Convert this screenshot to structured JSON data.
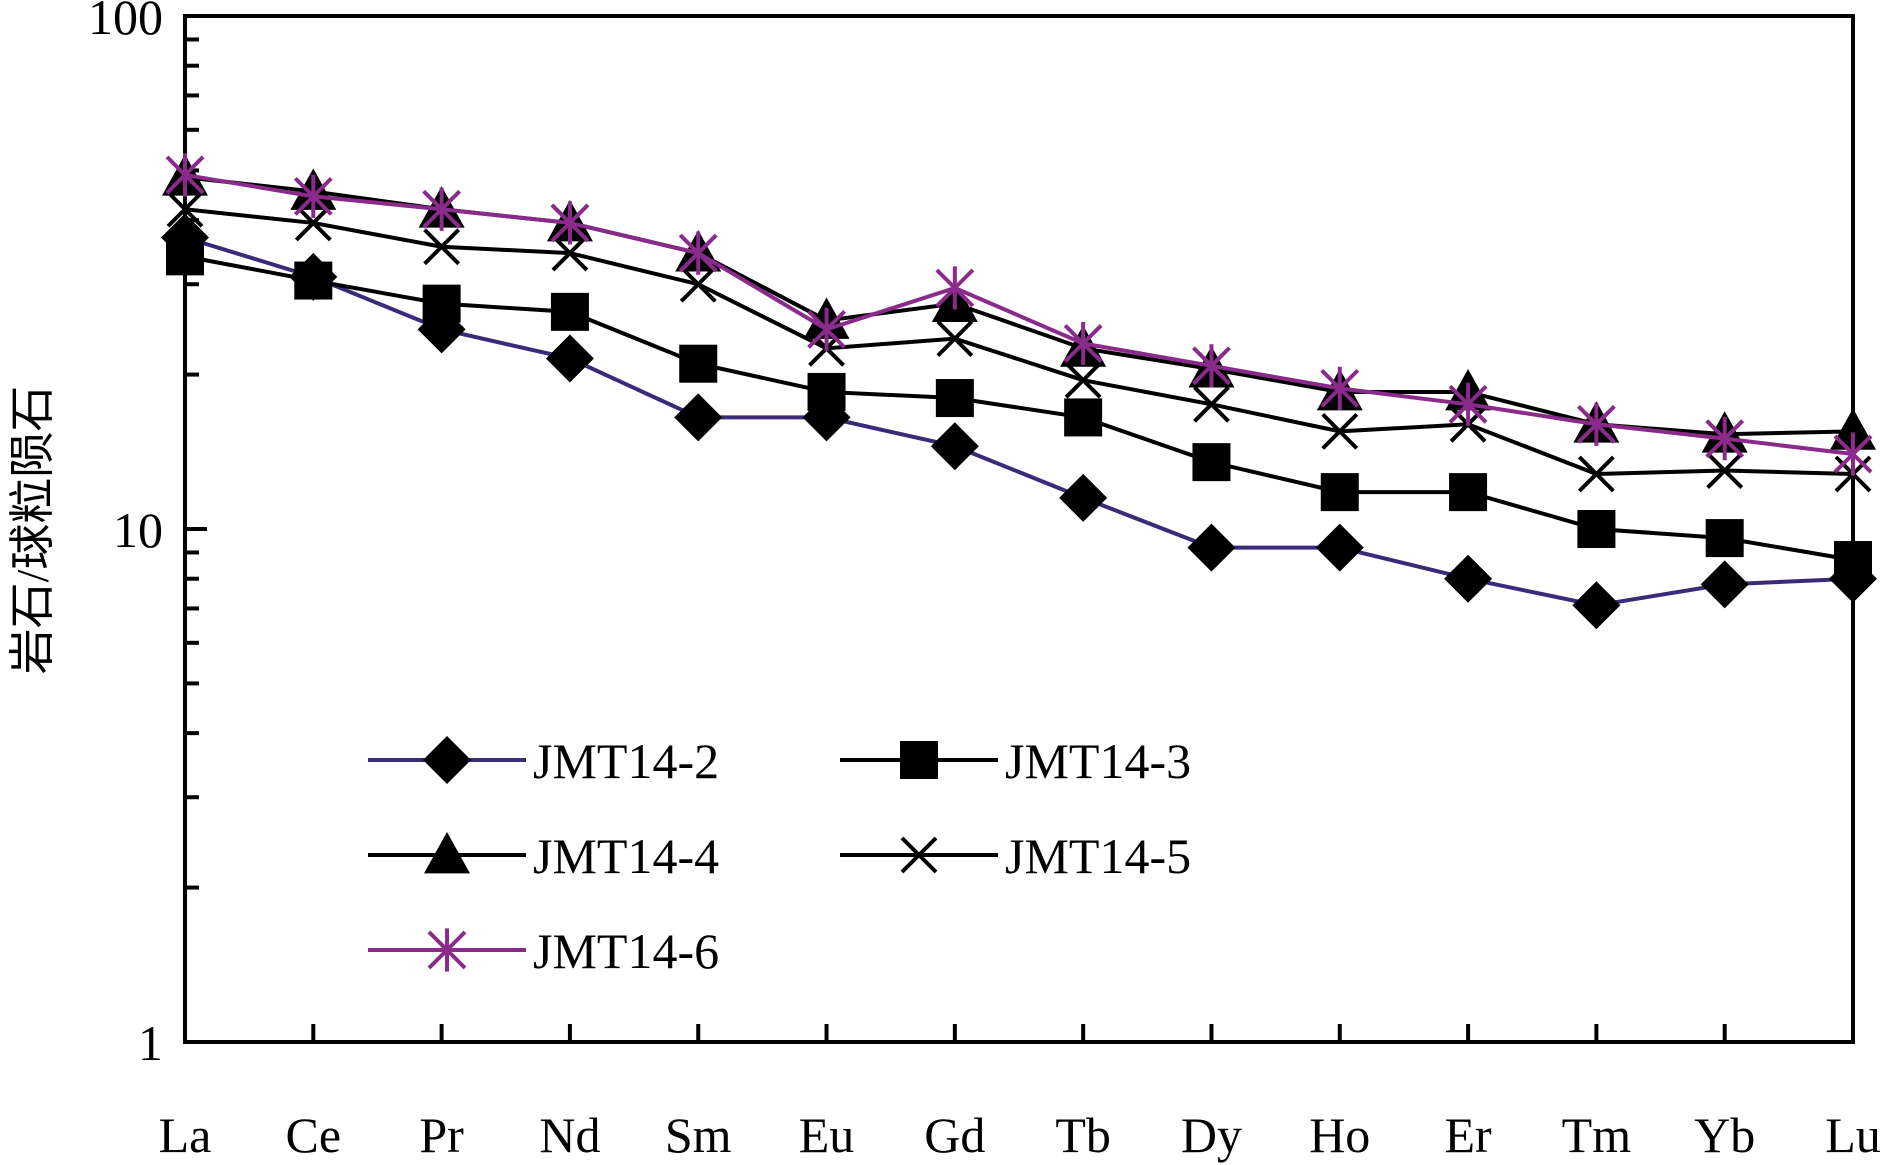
{
  "chart_data": {
    "type": "line",
    "title": "",
    "xlabel": "",
    "ylabel": "岩石/球粒陨石",
    "y_scale": "log",
    "ylim": [
      1,
      100
    ],
    "y_tick_labels": [
      "1",
      "10",
      "100"
    ],
    "grid": false,
    "legend_position": "lower-left",
    "categories": [
      "La",
      "Ce",
      "Pr",
      "Nd",
      "Sm",
      "Eu",
      "Gd",
      "Tb",
      "Dy",
      "Ho",
      "Er",
      "Tm",
      "Yb",
      "Lu"
    ],
    "series": [
      {
        "name": "JMT14-2",
        "marker": "diamond",
        "color": "#3b2a7a",
        "values": [
          37,
          31,
          24.5,
          21.5,
          16.5,
          16.5,
          14.5,
          11.5,
          9.2,
          9.2,
          8.0,
          7.1,
          7.8,
          8.0
        ]
      },
      {
        "name": "JMT14-3",
        "marker": "square",
        "color": "#000000",
        "values": [
          34,
          30.5,
          27.5,
          26.5,
          21,
          18.5,
          18.0,
          16.5,
          13.5,
          11.8,
          11.8,
          10.0,
          9.6,
          8.7
        ]
      },
      {
        "name": "JMT14-4",
        "marker": "triangle",
        "color": "#000000",
        "values": [
          48.5,
          45.5,
          42,
          39.5,
          34.5,
          25.5,
          27.5,
          22.5,
          20.5,
          18.5,
          18.5,
          16.0,
          15.3,
          15.5
        ]
      },
      {
        "name": "JMT14-5",
        "marker": "x",
        "color": "#000000",
        "values": [
          42,
          39.5,
          35.5,
          34.5,
          30,
          22.5,
          23.5,
          19.5,
          17.5,
          15.5,
          16.0,
          12.8,
          13.0,
          12.8
        ]
      },
      {
        "name": "JMT14-6",
        "marker": "asterisk",
        "color": "#8a2a8a",
        "values": [
          49,
          44.5,
          42,
          39.5,
          34.5,
          24.5,
          29.5,
          23.0,
          20.8,
          18.8,
          17.5,
          16.0,
          15.0,
          14.0
        ]
      }
    ]
  }
}
